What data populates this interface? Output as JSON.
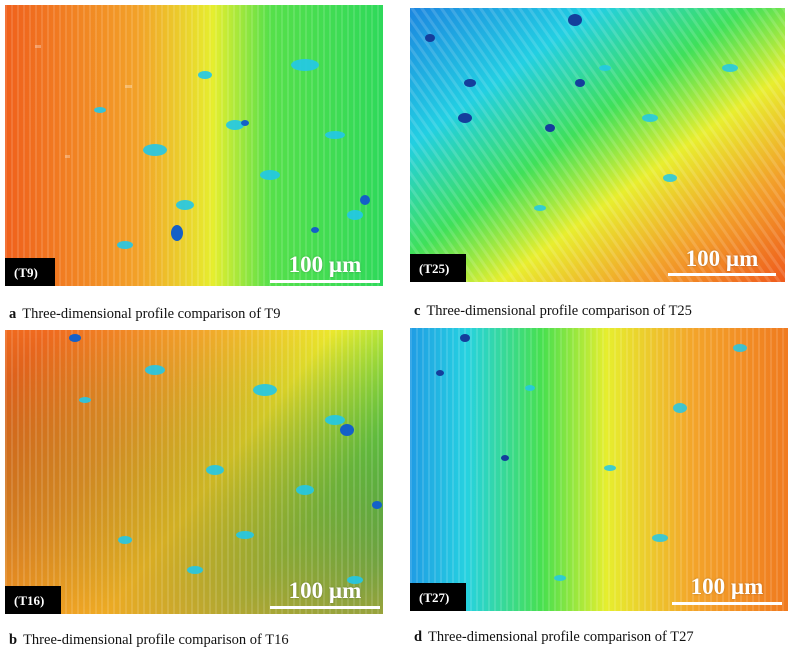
{
  "panels": [
    {
      "id": "a",
      "tag": "(T9)",
      "scale_label": "100 µm",
      "caption_letter": "a",
      "caption_text": "Three-dimensional profile comparison of T9"
    },
    {
      "id": "b",
      "tag": "(T16)",
      "scale_label": "100 µm",
      "caption_letter": "b",
      "caption_text": "Three-dimensional profile comparison of T16"
    },
    {
      "id": "c",
      "tag": "(T25)",
      "scale_label": "100 µm",
      "caption_letter": "c",
      "caption_text": "Three-dimensional profile comparison of T25"
    },
    {
      "id": "d",
      "tag": "(T27)",
      "scale_label": "100 µm",
      "caption_letter": "d",
      "caption_text": "Three-dimensional profile comparison of T27"
    }
  ],
  "colors": {
    "orange": "#f06a1c",
    "yellow": "#f2ef2a",
    "green": "#2fe052",
    "cyan": "#20d6e6",
    "blue": "#1b7ae0",
    "navy": "#102a6a"
  }
}
